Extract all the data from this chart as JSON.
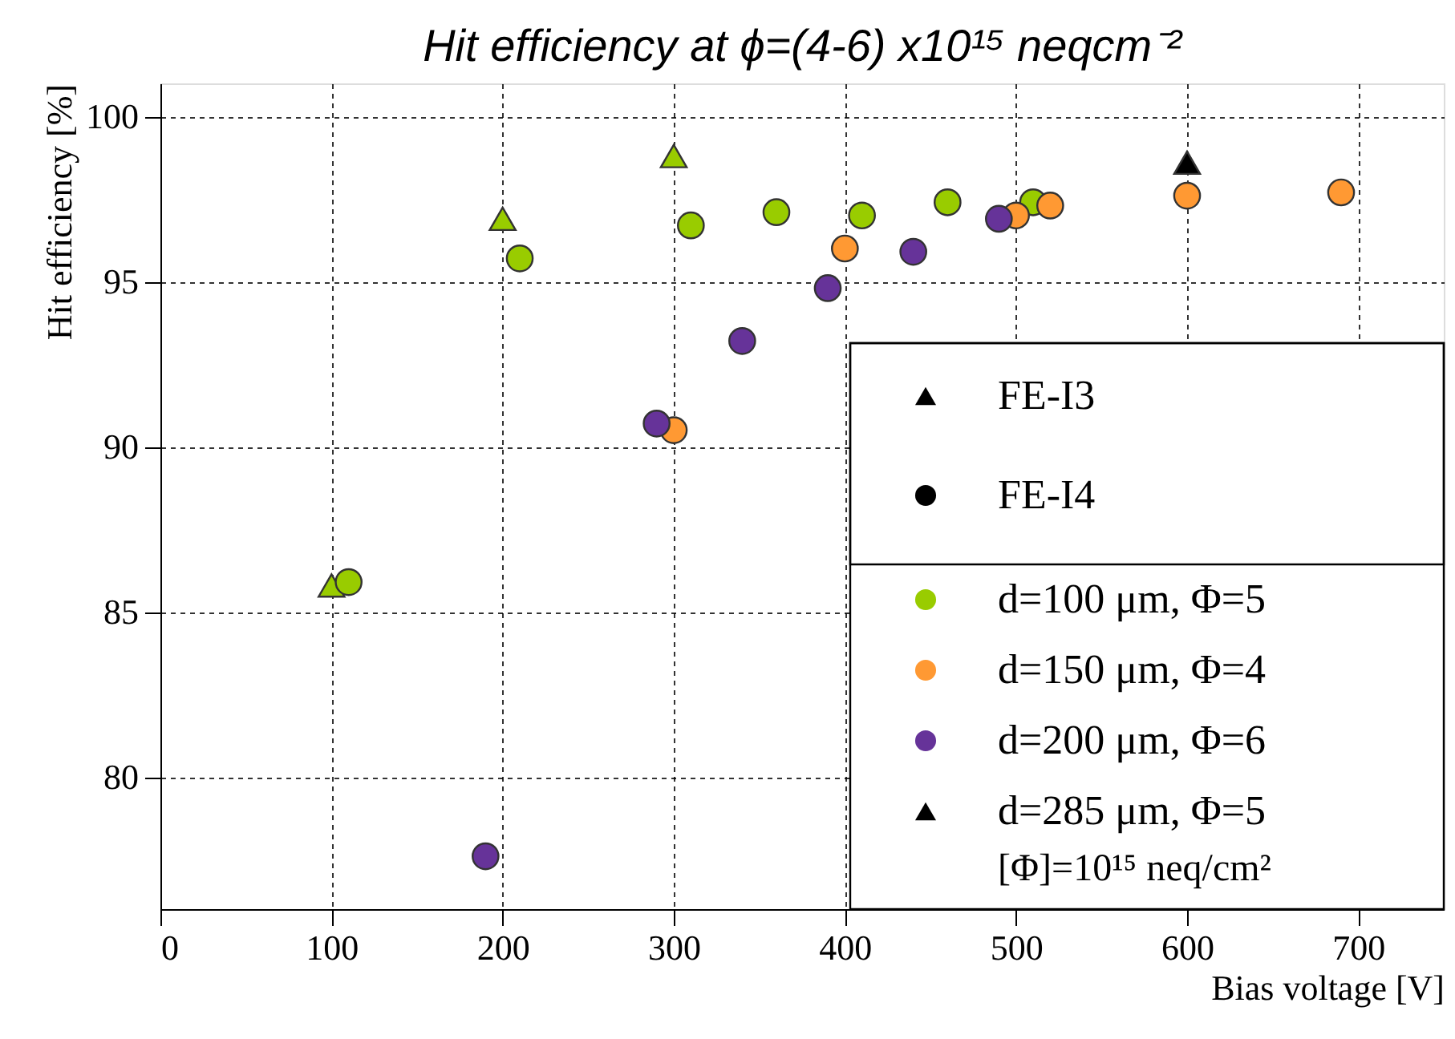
{
  "chart_data": {
    "type": "scatter",
    "title": "Hit efficiency at  ϕ=(4-6) x10¹⁵ neqcm⁻²",
    "xlabel": "Bias voltage [V]",
    "ylabel": "Hit efficiency [%]",
    "xlim": [
      0,
      750
    ],
    "xticks": [
      0,
      100,
      200,
      300,
      400,
      500,
      600,
      700
    ],
    "ylim": [
      76,
      101
    ],
    "yticks": [
      80,
      85,
      90,
      95,
      100
    ],
    "grid": true,
    "legend": "bottom right",
    "annotations": [
      "[Φ]=10¹⁵ neq/cm²"
    ],
    "series": [
      {
        "name": "FE-I3",
        "color": "#000000",
        "marker": "triangle"
      },
      {
        "name": "FE-I4",
        "color": "#000000",
        "marker": "circle"
      },
      {
        "color": "#99cc00",
        "marker": "triangle",
        "x": [
          100,
          200,
          300
        ],
        "values": [
          85.8,
          96.9,
          98.8
        ]
      },
      {
        "name": "d=100 μm, Φ=5",
        "color": "#99cc00",
        "marker": "circle",
        "x": [
          110,
          210,
          310,
          360,
          410,
          460,
          510
        ],
        "values": [
          85.9,
          95.7,
          96.7,
          97.1,
          97.0,
          97.4,
          97.4
        ]
      },
      {
        "name": "d=150 μm, Φ=4",
        "color": "#ff9933",
        "marker": "circle",
        "x": [
          300,
          400,
          500,
          520,
          600,
          690
        ],
        "values": [
          90.5,
          96.0,
          97.0,
          97.3,
          97.6,
          97.7
        ]
      },
      {
        "name": "d=200 μm, Φ=6",
        "color": "#663399",
        "marker": "circle",
        "x": [
          190,
          290,
          340,
          390,
          440,
          490
        ],
        "values": [
          77.6,
          90.7,
          93.2,
          94.8,
          95.9,
          96.9
        ]
      },
      {
        "name": "d=285 μm, Φ=5",
        "color": "#000000",
        "marker": "triangle",
        "x": [
          600
        ],
        "values": [
          98.6
        ]
      }
    ]
  }
}
